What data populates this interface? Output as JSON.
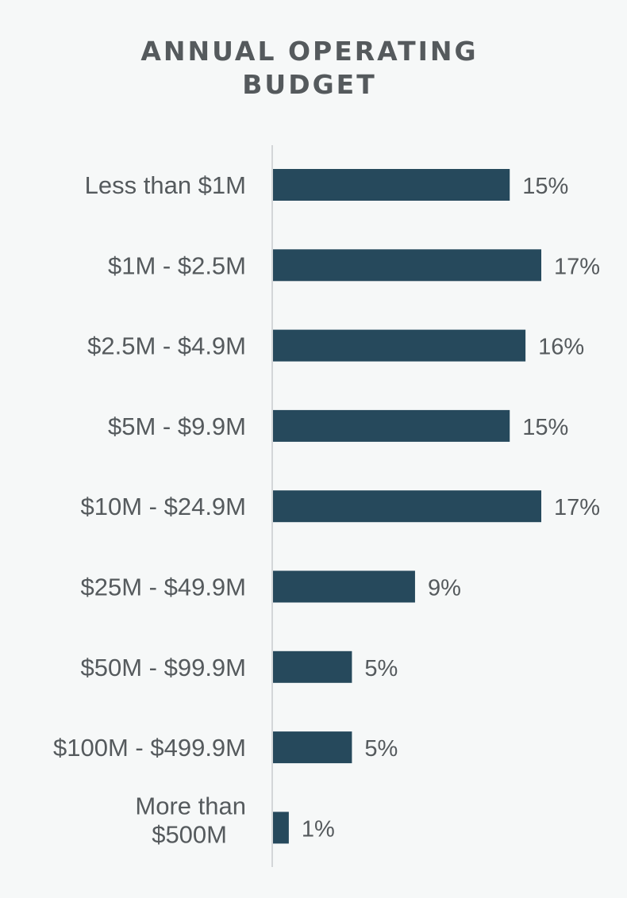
{
  "chart_data": {
    "type": "bar",
    "orientation": "horizontal",
    "title_lines": [
      "ANNUAL OPERATING",
      "BUDGET"
    ],
    "categories": [
      "Less than $1M",
      "$1M - $2.5M",
      "$2.5M - $4.9M",
      "$5M - $9.9M",
      "$10M - $24.9M",
      "$25M - $49.9M",
      "$50M - $99.9M",
      "$100M - $499.9M",
      "More than $500M"
    ],
    "category_label_lines": [
      [
        "Less than $1M"
      ],
      [
        "$1M - $2.5M"
      ],
      [
        "$2.5M - $4.9M"
      ],
      [
        "$5M - $9.9M"
      ],
      [
        "$10M - $24.9M"
      ],
      [
        "$25M - $49.9M"
      ],
      [
        "$50M - $99.9M"
      ],
      [
        "$100M - $499.9M"
      ],
      [
        "More than",
        "$500M"
      ]
    ],
    "values": [
      15,
      17,
      16,
      15,
      17,
      9,
      5,
      5,
      1
    ],
    "value_labels": [
      "15%",
      "17%",
      "16%",
      "15%",
      "17%",
      "9%",
      "5%",
      "5%",
      "1%"
    ],
    "unit": "%",
    "xlim": [
      0,
      18.5
    ],
    "grid": false,
    "legend": "none",
    "colors": {
      "bar": "#26495c",
      "axis": "#d3d6d8",
      "text": "#555a5d",
      "background": "#f6f8f8"
    }
  }
}
